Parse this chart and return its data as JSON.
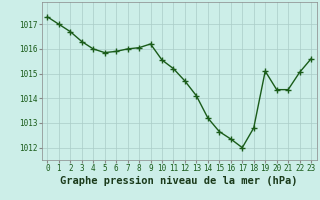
{
  "x": [
    0,
    1,
    2,
    3,
    4,
    5,
    6,
    7,
    8,
    9,
    10,
    11,
    12,
    13,
    14,
    15,
    16,
    17,
    18,
    19,
    20,
    21,
    22,
    23
  ],
  "y": [
    1017.3,
    1017.0,
    1016.7,
    1016.3,
    1016.0,
    1015.85,
    1015.9,
    1016.0,
    1016.05,
    1016.2,
    1015.55,
    1015.2,
    1014.7,
    1014.1,
    1013.2,
    1012.65,
    1012.35,
    1012.0,
    1012.8,
    1015.1,
    1014.35,
    1014.35,
    1015.05,
    1015.6
  ],
  "line_color": "#1a5c1a",
  "marker_color": "#1a5c1a",
  "bg_color": "#cceee8",
  "grid_color": "#aaccc8",
  "title": "Graphe pression niveau de la mer (hPa)",
  "ylim_min": 1011.5,
  "ylim_max": 1017.9,
  "yticks": [
    1012,
    1013,
    1014,
    1015,
    1016,
    1017
  ],
  "xticks": [
    0,
    1,
    2,
    3,
    4,
    5,
    6,
    7,
    8,
    9,
    10,
    11,
    12,
    13,
    14,
    15,
    16,
    17,
    18,
    19,
    20,
    21,
    22,
    23
  ],
  "title_fontsize": 7.5,
  "tick_fontsize": 5.5,
  "line_width": 1.0,
  "marker_size": 2.5
}
